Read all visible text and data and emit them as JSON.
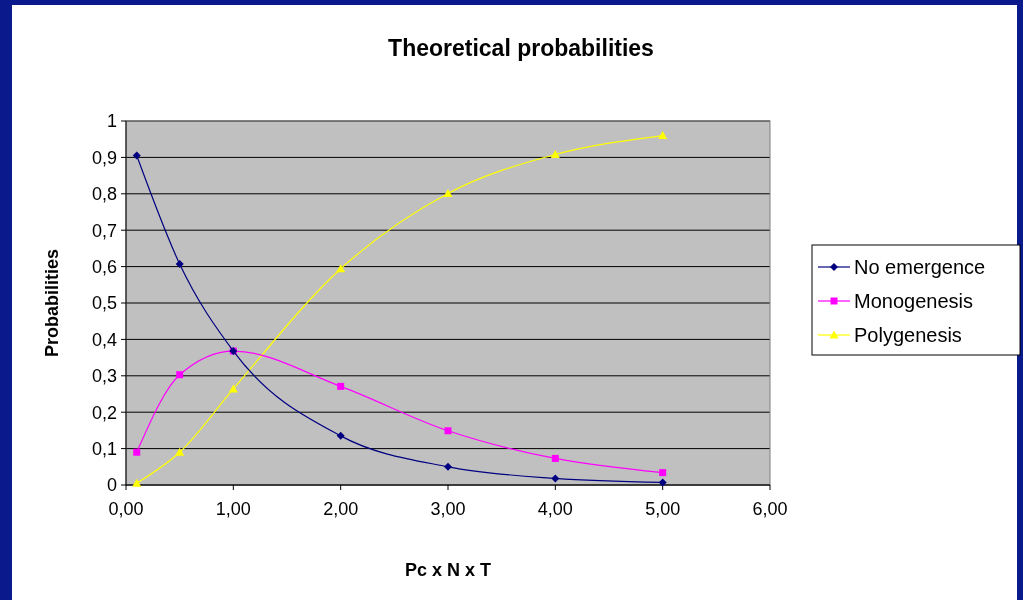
{
  "chart_data": {
    "type": "line",
    "title": "Theoretical probabilities",
    "xlabel": "Pc x N x T",
    "ylabel": "Probabilities",
    "x": [
      0.1,
      0.5,
      1,
      2,
      3,
      4,
      5
    ],
    "series": [
      {
        "name": "No emergence",
        "color": "#000080",
        "marker": "diamond",
        "values": [
          0.905,
          0.607,
          0.368,
          0.135,
          0.05,
          0.018,
          0.007
        ]
      },
      {
        "name": "Monogenesis",
        "color": "#ff00ff",
        "marker": "square",
        "values": [
          0.09,
          0.303,
          0.368,
          0.271,
          0.149,
          0.073,
          0.034
        ]
      },
      {
        "name": "Polygenesis",
        "color": "#ffff00",
        "marker": "triangle",
        "values": [
          0.005,
          0.09,
          0.264,
          0.594,
          0.801,
          0.908,
          0.96
        ]
      }
    ],
    "xlim": [
      0,
      6
    ],
    "xticks": [
      {
        "value": 0,
        "label": "0,00"
      },
      {
        "value": 1,
        "label": "1,00"
      },
      {
        "value": 2,
        "label": "2,00"
      },
      {
        "value": 3,
        "label": "3,00"
      },
      {
        "value": 4,
        "label": "4,00"
      },
      {
        "value": 5,
        "label": "5,00"
      },
      {
        "value": 6,
        "label": "6,00"
      }
    ],
    "ylim": [
      0,
      1
    ],
    "yticks": [
      0,
      {
        "value": 0.1,
        "label": "0,1"
      },
      {
        "value": 0.2,
        "label": "0,2"
      },
      {
        "value": 0.3,
        "label": "0,3"
      },
      {
        "value": 0.4,
        "label": "0,4"
      },
      {
        "value": 0.5,
        "label": "0,5"
      },
      {
        "value": 0.6,
        "label": "0,6"
      },
      {
        "value": 0.7,
        "label": "0,7"
      },
      {
        "value": 0.8,
        "label": "0,8"
      },
      {
        "value": 0.9,
        "label": "0,9"
      },
      1
    ],
    "grid": "y",
    "legend": "right"
  }
}
